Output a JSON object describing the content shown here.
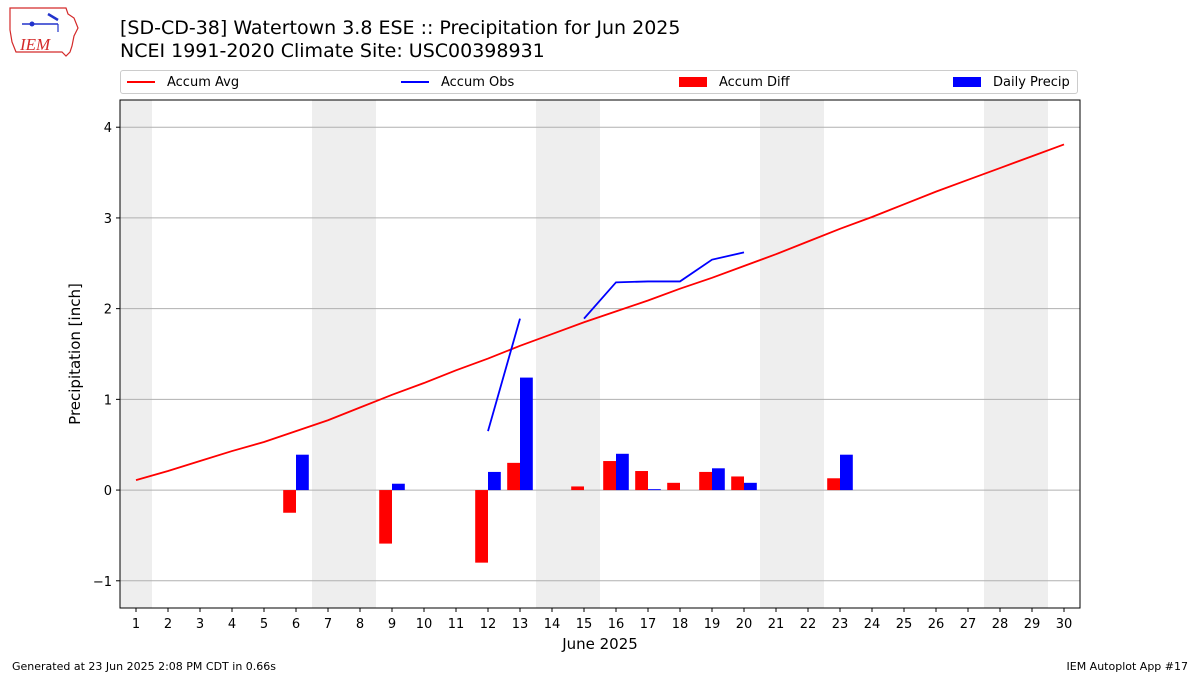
{
  "logo": {
    "text": "IEM",
    "color": "#d42a2a"
  },
  "title": {
    "line1": "[SD-CD-38] Watertown 3.8 ESE :: Precipitation for Jun 2025",
    "line2": "NCEI 1991-2020 Climate Site: USC00398931"
  },
  "footer": {
    "left": "Generated at 23 Jun 2025 2:08 PM CDT in 0.66s",
    "right": "IEM Autoplot App #17"
  },
  "colors": {
    "accum_avg": "#ff0000",
    "accum_obs": "#0000ff",
    "accum_diff": "#ff0000",
    "daily_precip": "#0000ff",
    "weekend_shade": "#eeeeee",
    "grid": "#b0b0b0"
  },
  "chart_data": {
    "type": "bar",
    "xlabel": "June 2025",
    "ylabel": "Precipitation [inch]",
    "xlim": [
      0.5,
      30.5
    ],
    "ylim": [
      -1.3,
      4.3
    ],
    "x_ticks": [
      "1",
      "2",
      "3",
      "4",
      "5",
      "6",
      "7",
      "8",
      "9",
      "10",
      "11",
      "12",
      "13",
      "14",
      "15",
      "16",
      "17",
      "18",
      "19",
      "20",
      "21",
      "22",
      "23",
      "24",
      "25",
      "26",
      "27",
      "28",
      "29",
      "30"
    ],
    "y_ticks": [
      {
        "value": -1,
        "label": "−1"
      },
      {
        "value": 0,
        "label": "0"
      },
      {
        "value": 1,
        "label": "1"
      },
      {
        "value": 2,
        "label": "2"
      },
      {
        "value": 3,
        "label": "3"
      },
      {
        "value": 4,
        "label": "4"
      }
    ],
    "grid": "horizontal",
    "legend_placement": "top",
    "legend": [
      "Accum Avg",
      "Accum Obs",
      "Accum Diff",
      "Daily Precip"
    ],
    "weekend_shading": [
      [
        0.5,
        1.5
      ],
      [
        6.5,
        8.5
      ],
      [
        13.5,
        15.5
      ],
      [
        20.5,
        22.5
      ],
      [
        27.5,
        29.5
      ]
    ],
    "series": [
      {
        "name": "Accum Avg",
        "type": "line",
        "x": [
          1,
          2,
          3,
          4,
          5,
          6,
          7,
          8,
          9,
          10,
          11,
          12,
          13,
          14,
          15,
          16,
          17,
          18,
          19,
          20,
          21,
          22,
          23,
          24,
          25,
          26,
          27,
          28,
          29,
          30
        ],
        "values": [
          0.11,
          0.21,
          0.32,
          0.43,
          0.53,
          0.65,
          0.77,
          0.91,
          1.05,
          1.18,
          1.32,
          1.45,
          1.59,
          1.72,
          1.85,
          1.97,
          2.09,
          2.22,
          2.34,
          2.47,
          2.6,
          2.74,
          2.88,
          3.01,
          3.15,
          3.29,
          3.42,
          3.55,
          3.68,
          3.81
        ]
      },
      {
        "name": "Accum Obs",
        "type": "line",
        "segments": [
          {
            "x": [
              12,
              13
            ],
            "values": [
              0.65,
              1.89
            ]
          },
          {
            "x": [
              15,
              16,
              17,
              18,
              19,
              20
            ],
            "values": [
              1.89,
              2.29,
              2.3,
              2.3,
              2.54,
              2.62
            ]
          }
        ]
      },
      {
        "name": "Accum Diff",
        "type": "bar",
        "x": [
          6,
          9,
          12,
          13,
          15,
          16,
          17,
          18,
          19,
          20,
          23
        ],
        "values": [
          -0.25,
          -0.59,
          -0.8,
          0.3,
          0.04,
          0.32,
          0.21,
          0.08,
          0.2,
          0.15,
          0.13
        ]
      },
      {
        "name": "Daily Precip",
        "type": "bar",
        "x": [
          6,
          9,
          12,
          13,
          16,
          17,
          19,
          20,
          23
        ],
        "values": [
          0.39,
          0.07,
          0.2,
          1.24,
          0.4,
          0.01,
          0.24,
          0.08,
          0.39
        ]
      }
    ]
  }
}
